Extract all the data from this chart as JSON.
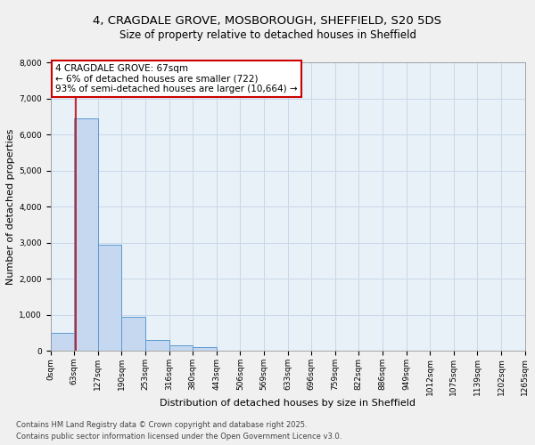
{
  "title_line1": "4, CRAGDALE GROVE, MOSBOROUGH, SHEFFIELD, S20 5DS",
  "title_line2": "Size of property relative to detached houses in Sheffield",
  "xlabel": "Distribution of detached houses by size in Sheffield",
  "ylabel": "Number of detached properties",
  "bar_values": [
    500,
    6450,
    2950,
    950,
    300,
    150,
    100,
    0,
    0,
    0,
    0,
    0,
    0,
    0,
    0,
    0,
    0,
    0,
    0,
    0
  ],
  "bar_labels": [
    "0sqm",
    "63sqm",
    "127sqm",
    "190sqm",
    "253sqm",
    "316sqm",
    "380sqm",
    "443sqm",
    "506sqm",
    "569sqm",
    "633sqm",
    "696sqm",
    "759sqm",
    "822sqm",
    "886sqm",
    "949sqm",
    "1012sqm",
    "1075sqm",
    "1139sqm",
    "1202sqm",
    "1265sqm"
  ],
  "bar_color": "#c5d8f0",
  "bar_edge_color": "#5b9bd5",
  "grid_color": "#c8d8e8",
  "background_color": "#e8f0f8",
  "annotation_text": "4 CRAGDALE GROVE: 67sqm\n← 6% of detached houses are smaller (722)\n93% of semi-detached houses are larger (10,664) →",
  "annotation_box_color": "#ffffff",
  "annotation_border_color": "#cc0000",
  "ylim": [
    0,
    8000
  ],
  "yticks": [
    0,
    1000,
    2000,
    3000,
    4000,
    5000,
    6000,
    7000,
    8000
  ],
  "footer_line1": "Contains HM Land Registry data © Crown copyright and database right 2025.",
  "footer_line2": "Contains public sector information licensed under the Open Government Licence v3.0.",
  "title_fontsize": 9.5,
  "subtitle_fontsize": 8.5,
  "axis_label_fontsize": 8,
  "tick_fontsize": 6.5,
  "annotation_fontsize": 7.5,
  "footer_fontsize": 6
}
